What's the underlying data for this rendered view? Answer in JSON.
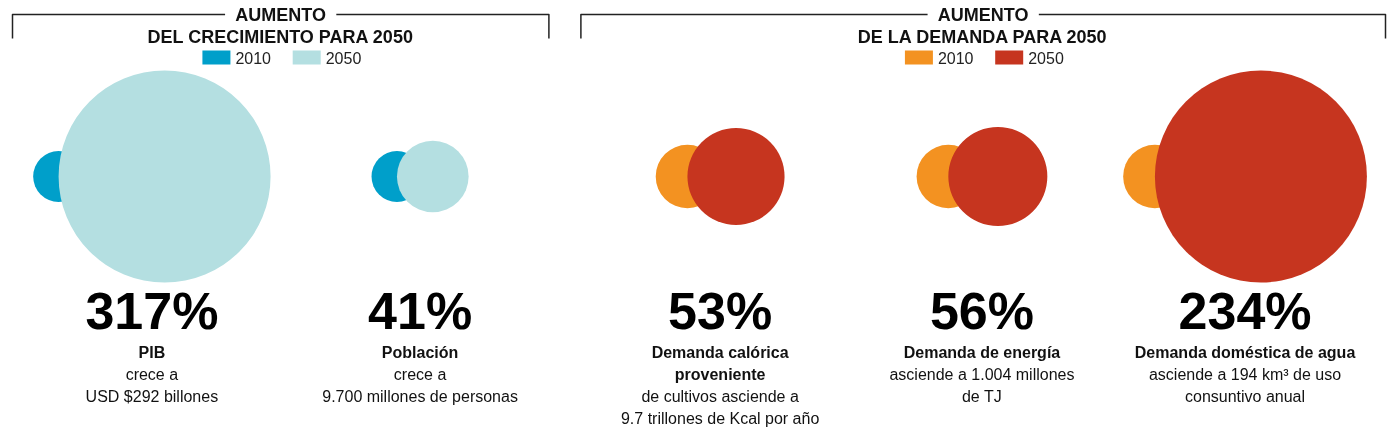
{
  "chart_data": [
    {
      "type": "other",
      "title": "AUMENTO DEL CRECIMIENTO PARA 2050",
      "categories": [
        "PIB",
        "Población"
      ],
      "series": [
        {
          "name": "2010",
          "color": "#009fca",
          "values": [
            null,
            null
          ]
        },
        {
          "name": "2050",
          "color": "#b4dfe1",
          "values": [
            317,
            41
          ],
          "value_labels": [
            "317%",
            "41%"
          ]
        }
      ],
      "annotations": [
        "crece a\nUSD $292 billones",
        "crece a\n9.700 millones de personas"
      ],
      "legend": "top"
    },
    {
      "type": "other",
      "title": "AUMENTO DE LA DEMANDA PARA 2050",
      "categories": [
        "Demanda calórica\nproveniente",
        "Demanda de energía",
        "Demanda doméstica de agua"
      ],
      "series": [
        {
          "name": "2010",
          "color": "#f39221",
          "values": [
            null,
            null,
            null
          ]
        },
        {
          "name": "2050",
          "color": "#c6351f",
          "values": [
            53,
            56,
            234
          ],
          "value_labels": [
            "53%",
            "56%",
            "234%"
          ]
        }
      ],
      "annotations": [
        "de cultivos asciende a\n9.7 trillones de Kcal por año",
        "asciende a 1.004 millones\nde TJ",
        "asciende a 194 km³ de uso\nconsuntivo anual"
      ],
      "legend": "top"
    }
  ]
}
